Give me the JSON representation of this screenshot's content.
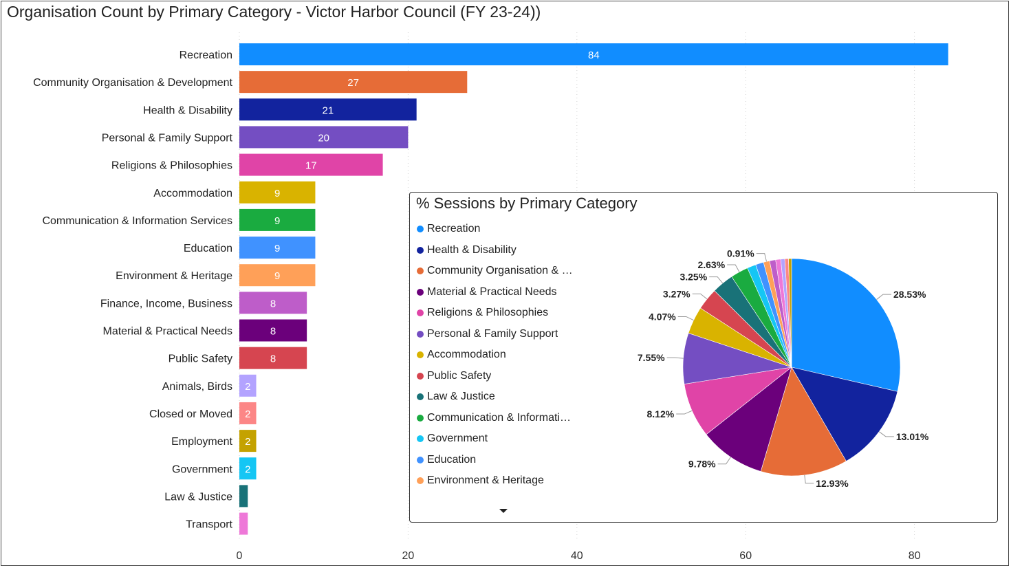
{
  "title": "Organisation Count by Primary Category - Victor Harbor Council (FY 23-24))",
  "chart_data": [
    {
      "type": "bar",
      "orientation": "horizontal",
      "title": "Organisation Count by Primary Category - Victor Harbor Council (FY 23-24))",
      "categories": [
        "Recreation",
        "Community Organisation & Development",
        "Health & Disability",
        "Personal & Family Support",
        "Religions & Philosophies",
        "Accommodation",
        "Communication & Information Services",
        "Education",
        "Environment & Heritage",
        "Finance, Income, Business",
        "Material & Practical Needs",
        "Public Safety",
        "Animals, Birds",
        "Closed or Moved",
        "Employment",
        "Government",
        "Law & Justice",
        "Transport"
      ],
      "values": [
        84,
        27,
        21,
        20,
        17,
        9,
        9,
        9,
        9,
        8,
        8,
        8,
        2,
        2,
        2,
        2,
        1,
        1
      ],
      "data_labels": [
        "84",
        "27",
        "21",
        "20",
        "17",
        "9",
        "9",
        "9",
        "9",
        "8",
        "8",
        "8",
        "2",
        "2",
        "2",
        "2",
        "",
        ""
      ],
      "colors": [
        "#118dff",
        "#e66c37",
        "#12239e",
        "#744ec2",
        "#e044a7",
        "#d9b300",
        "#1aab40",
        "#4092ff",
        "#ffa058",
        "#be5dc9",
        "#6b007b",
        "#d64550",
        "#b3a3ff",
        "#fc8686",
        "#c4a200",
        "#15c6f4",
        "#197278",
        "#ee78d8"
      ],
      "x_ticks": [
        "0",
        "20",
        "40",
        "60",
        "80"
      ],
      "xlim": [
        0,
        90
      ],
      "grid": "vertical dotted"
    },
    {
      "type": "pie",
      "title": "% Sessions by Primary Category",
      "legend": [
        "Recreation",
        "Health & Disability",
        "Community Organisation & Development",
        "Material & Practical Needs",
        "Religions & Philosophies",
        "Personal & Family Support",
        "Accommodation",
        "Public Safety",
        "Law & Justice",
        "Communication & Information Services",
        "Government",
        "Education",
        "Environment & Heritage"
      ],
      "legend_display": [
        "Recreation",
        "Health & Disability",
        "Community Organisation & …",
        "Material & Practical Needs",
        "Religions & Philosophies",
        "Personal & Family Support",
        "Accommodation",
        "Public Safety",
        "Law & Justice",
        "Communication & Informati…",
        "Government",
        "Education",
        "Environment & Heritage"
      ],
      "legend_placement": "left",
      "values": [
        28.53,
        13.01,
        12.93,
        9.78,
        8.12,
        7.55,
        4.07,
        3.27,
        3.25,
        2.63,
        1.3,
        1.2,
        0.91,
        0.9,
        0.75,
        0.6,
        0.55,
        0.45
      ],
      "labels": [
        "28.53%",
        "13.01%",
        "12.93%",
        "9.78%",
        "8.12%",
        "7.55%",
        "4.07%",
        "3.27%",
        "3.25%",
        "2.63%",
        "",
        "",
        "0.91%",
        "",
        "",
        "",
        "",
        ""
      ],
      "colors": [
        "#118dff",
        "#12239e",
        "#e66c37",
        "#6b007b",
        "#e044a7",
        "#744ec2",
        "#d9b300",
        "#d64550",
        "#197278",
        "#1aab40",
        "#15c6f4",
        "#4092ff",
        "#ffa058",
        "#be5dc9",
        "#ee78d8",
        "#b3a3ff",
        "#fc8686",
        "#c4a200"
      ]
    }
  ]
}
